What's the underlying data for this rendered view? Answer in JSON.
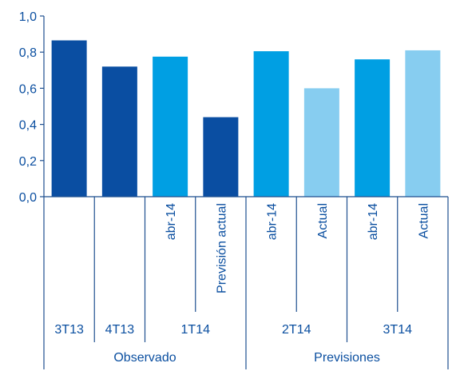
{
  "chart_data": {
    "type": "bar",
    "title": "",
    "xlabel": "",
    "ylabel": "",
    "ylim": [
      0,
      1.0
    ],
    "yticks": [
      "0,0",
      "0,2",
      "0,4",
      "0,6",
      "0,8",
      "1,0"
    ],
    "grid": false,
    "colors": {
      "dark": "#0a4ea2",
      "medium": "#009fe3",
      "light": "#87cdf0",
      "axis": "#1f4f8f",
      "text": "#0b4fa0"
    },
    "bars": [
      {
        "label": "",
        "period": "3T13",
        "group": "Observado",
        "value": 0.865,
        "color": "dark"
      },
      {
        "label": "",
        "period": "4T13",
        "group": "Observado",
        "value": 0.72,
        "color": "dark"
      },
      {
        "label": "abr-14",
        "period": "1T14",
        "group": "Observado",
        "value": 0.775,
        "color": "medium"
      },
      {
        "label": "Previsión actual",
        "period": "1T14",
        "group": "Observado",
        "value": 0.44,
        "color": "dark"
      },
      {
        "label": "abr-14",
        "period": "2T14",
        "group": "Previsiones",
        "value": 0.805,
        "color": "medium"
      },
      {
        "label": "Actual",
        "period": "2T14",
        "group": "Previsiones",
        "value": 0.6,
        "color": "light"
      },
      {
        "label": "abr-14",
        "period": "3T14",
        "group": "Previsiones",
        "value": 0.76,
        "color": "medium"
      },
      {
        "label": "Actual",
        "period": "3T14",
        "group": "Previsiones",
        "value": 0.81,
        "color": "light"
      }
    ],
    "periods": [
      {
        "label": "3T13",
        "span": [
          0,
          0
        ]
      },
      {
        "label": "4T13",
        "span": [
          1,
          1
        ]
      },
      {
        "label": "1T14",
        "span": [
          2,
          3
        ]
      },
      {
        "label": "2T14",
        "span": [
          4,
          5
        ]
      },
      {
        "label": "3T14",
        "span": [
          6,
          7
        ]
      }
    ],
    "groups": [
      {
        "label": "Observado",
        "span": [
          0,
          3
        ]
      },
      {
        "label": "Previsiones",
        "span": [
          4,
          7
        ]
      }
    ]
  }
}
